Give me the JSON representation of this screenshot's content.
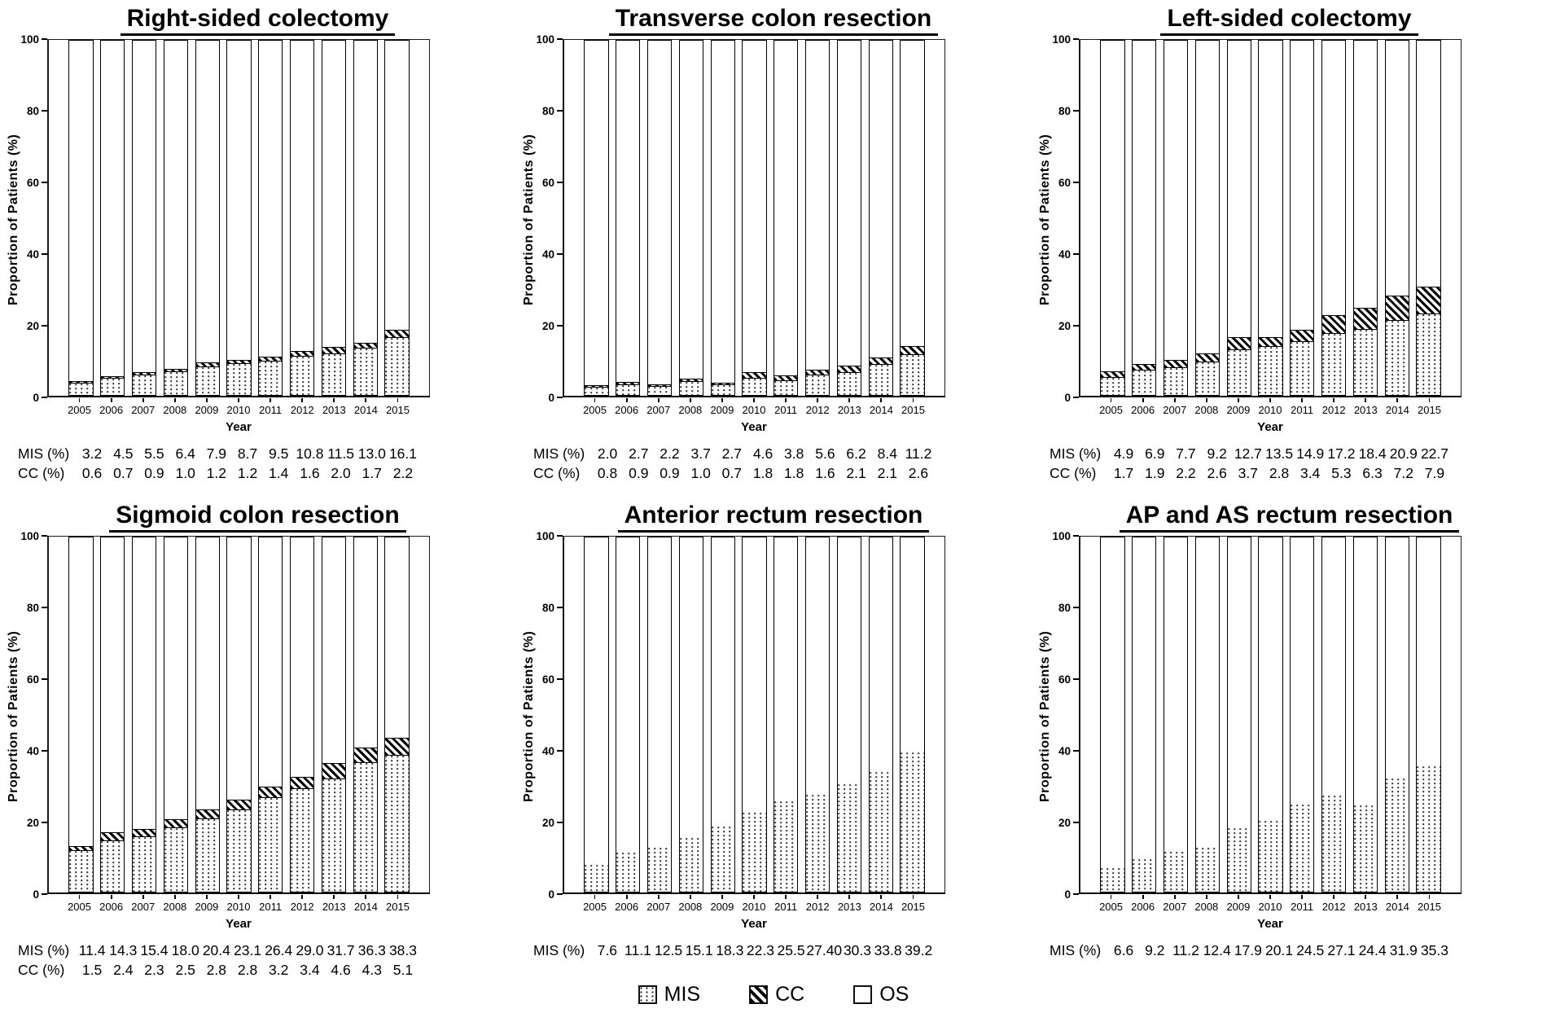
{
  "figure": {
    "ylabel": "Proportion of Patients (%)",
    "xlabel": "Year",
    "legend": [
      {
        "name": "MIS",
        "pattern": "dotted",
        "swatch_icon": "dotted-square-icon"
      },
      {
        "name": "CC",
        "pattern": "diagonal-hatch",
        "swatch_icon": "hatched-square-icon"
      },
      {
        "name": "OS",
        "pattern": "plain",
        "swatch_icon": "open-square-icon"
      }
    ]
  },
  "chart_data": [
    {
      "type": "bar",
      "stacked": true,
      "os_is_remainder_to_100": true,
      "title": "Right-sided colectomy",
      "xlabel": "Year",
      "ylabel": "Proportion of Patients (%)",
      "ylim": [
        0,
        100
      ],
      "yticks": [
        0,
        20,
        40,
        60,
        80,
        100
      ],
      "grid": false,
      "categories": [
        "2005",
        "2006",
        "2007",
        "2008",
        "2009",
        "2010",
        "2011",
        "2012",
        "2013",
        "2014",
        "2015"
      ],
      "series": [
        {
          "name": "MIS",
          "values": [
            3.2,
            4.5,
            5.5,
            6.4,
            7.9,
            8.7,
            9.5,
            10.8,
            11.5,
            13.0,
            16.1
          ]
        },
        {
          "name": "CC",
          "values": [
            0.6,
            0.7,
            0.9,
            1.0,
            1.2,
            1.2,
            1.4,
            1.6,
            2.0,
            1.7,
            2.2
          ]
        }
      ],
      "table": [
        {
          "label": "MIS (%)",
          "values": [
            "3.2",
            "4.5",
            "5.5",
            "6.4",
            "7.9",
            "8.7",
            "9.5",
            "10.8",
            "11.5",
            "13.0",
            "16.1"
          ]
        },
        {
          "label": "CC (%)",
          "values": [
            "0.6",
            "0.7",
            "0.9",
            "1.0",
            "1.2",
            "1.2",
            "1.4",
            "1.6",
            "2.0",
            "1.7",
            "2.2"
          ]
        }
      ]
    },
    {
      "type": "bar",
      "stacked": true,
      "os_is_remainder_to_100": true,
      "title": "Transverse colon resection",
      "xlabel": "Year",
      "ylabel": "Proportion of Patients (%)",
      "ylim": [
        0,
        100
      ],
      "yticks": [
        0,
        20,
        40,
        60,
        80,
        100
      ],
      "grid": false,
      "categories": [
        "2005",
        "2006",
        "2007",
        "2008",
        "2009",
        "2010",
        "2011",
        "2012",
        "2013",
        "2014",
        "2015"
      ],
      "series": [
        {
          "name": "MIS",
          "values": [
            2.0,
            2.7,
            2.2,
            3.7,
            2.7,
            4.6,
            3.8,
            5.6,
            6.2,
            8.4,
            11.2
          ]
        },
        {
          "name": "CC",
          "values": [
            0.8,
            0.9,
            0.9,
            1.0,
            0.7,
            1.8,
            1.8,
            1.6,
            2.1,
            2.1,
            2.6
          ]
        }
      ],
      "table": [
        {
          "label": "MIS (%)",
          "values": [
            "2.0",
            "2.7",
            "2.2",
            "3.7",
            "2.7",
            "4.6",
            "3.8",
            "5.6",
            "6.2",
            "8.4",
            "11.2"
          ]
        },
        {
          "label": "CC (%)",
          "values": [
            "0.8",
            "0.9",
            "0.9",
            "1.0",
            "0.7",
            "1.8",
            "1.8",
            "1.6",
            "2.1",
            "2.1",
            "2.6"
          ]
        }
      ]
    },
    {
      "type": "bar",
      "stacked": true,
      "os_is_remainder_to_100": true,
      "title": "Left-sided colectomy",
      "xlabel": "Year",
      "ylabel": "Proportion of Patients (%)",
      "ylim": [
        0,
        100
      ],
      "yticks": [
        0,
        20,
        40,
        60,
        80,
        100
      ],
      "grid": false,
      "categories": [
        "2005",
        "2006",
        "2007",
        "2008",
        "2009",
        "2010",
        "2011",
        "2012",
        "2013",
        "2014",
        "2015"
      ],
      "series": [
        {
          "name": "MIS",
          "values": [
            4.9,
            6.9,
            7.7,
            9.2,
            12.7,
            13.5,
            14.9,
            17.2,
            18.4,
            20.9,
            22.7
          ]
        },
        {
          "name": "CC",
          "values": [
            1.7,
            1.9,
            2.2,
            2.6,
            3.7,
            2.8,
            3.4,
            5.3,
            6.3,
            7.2,
            7.9
          ]
        }
      ],
      "table": [
        {
          "label": "MIS (%)",
          "values": [
            "4.9",
            "6.9",
            "7.7",
            "9.2",
            "12.7",
            "13.5",
            "14.9",
            "17.2",
            "18.4",
            "20.9",
            "22.7"
          ]
        },
        {
          "label": "CC (%)",
          "values": [
            "1.7",
            "1.9",
            "2.2",
            "2.6",
            "3.7",
            "2.8",
            "3.4",
            "5.3",
            "6.3",
            "7.2",
            "7.9"
          ]
        }
      ]
    },
    {
      "type": "bar",
      "stacked": true,
      "os_is_remainder_to_100": true,
      "title": "Sigmoid colon resection",
      "xlabel": "Year",
      "ylabel": "Proportion of Patients (%)",
      "ylim": [
        0,
        100
      ],
      "yticks": [
        0,
        20,
        40,
        60,
        80,
        100
      ],
      "grid": false,
      "categories": [
        "2005",
        "2006",
        "2007",
        "2008",
        "2009",
        "2010",
        "2011",
        "2012",
        "2013",
        "2014",
        "2015"
      ],
      "series": [
        {
          "name": "MIS",
          "values": [
            11.4,
            14.3,
            15.4,
            18.0,
            20.4,
            23.1,
            26.4,
            29.0,
            31.7,
            36.3,
            38.3
          ]
        },
        {
          "name": "CC",
          "values": [
            1.5,
            2.4,
            2.3,
            2.5,
            2.8,
            2.8,
            3.2,
            3.4,
            4.6,
            4.3,
            5.1
          ]
        }
      ],
      "table": [
        {
          "label": "MIS (%)",
          "values": [
            "11.4",
            "14.3",
            "15.4",
            "18.0",
            "20.4",
            "23.1",
            "26.4",
            "29.0",
            "31.7",
            "36.3",
            "38.3"
          ]
        },
        {
          "label": "CC (%)",
          "values": [
            "1.5",
            "2.4",
            "2.3",
            "2.5",
            "2.8",
            "2.8",
            "3.2",
            "3.4",
            "4.6",
            "4.3",
            "5.1"
          ]
        }
      ]
    },
    {
      "type": "bar",
      "stacked": true,
      "os_is_remainder_to_100": true,
      "title": "Anterior rectum resection",
      "xlabel": "Year",
      "ylabel": "Proportion of Patients (%)",
      "ylim": [
        0,
        100
      ],
      "yticks": [
        0,
        20,
        40,
        60,
        80,
        100
      ],
      "grid": false,
      "categories": [
        "2005",
        "2006",
        "2007",
        "2008",
        "2009",
        "2010",
        "2011",
        "2012",
        "2013",
        "2014",
        "2015"
      ],
      "series": [
        {
          "name": "MIS",
          "values": [
            7.6,
            11.1,
            12.5,
            15.1,
            18.3,
            22.3,
            25.5,
            27.4,
            30.3,
            33.8,
            39.2
          ]
        }
      ],
      "table": [
        {
          "label": "MIS (%)",
          "values": [
            "7.6",
            "11.1",
            "12.5",
            "15.1",
            "18.3",
            "22.3",
            "25.5",
            "27.40",
            "30.3",
            "33.8",
            "39.2"
          ]
        }
      ]
    },
    {
      "type": "bar",
      "stacked": true,
      "os_is_remainder_to_100": true,
      "title": "AP and AS rectum resection",
      "xlabel": "Year",
      "ylabel": "Proportion of Patients (%)",
      "ylim": [
        0,
        100
      ],
      "yticks": [
        0,
        20,
        40,
        60,
        80,
        100
      ],
      "grid": false,
      "categories": [
        "2005",
        "2006",
        "2007",
        "2008",
        "2009",
        "2010",
        "2011",
        "2012",
        "2013",
        "2014",
        "2015"
      ],
      "series": [
        {
          "name": "MIS",
          "values": [
            6.6,
            9.2,
            11.2,
            12.4,
            17.9,
            20.1,
            24.5,
            27.1,
            24.4,
            31.9,
            35.3
          ]
        }
      ],
      "table": [
        {
          "label": "MIS (%)",
          "values": [
            "6.6",
            "9.2",
            "11.2",
            "12.4",
            "17.9",
            "20.1",
            "24.5",
            "27.1",
            "24.4",
            "31.9",
            "35.3"
          ]
        }
      ]
    }
  ]
}
